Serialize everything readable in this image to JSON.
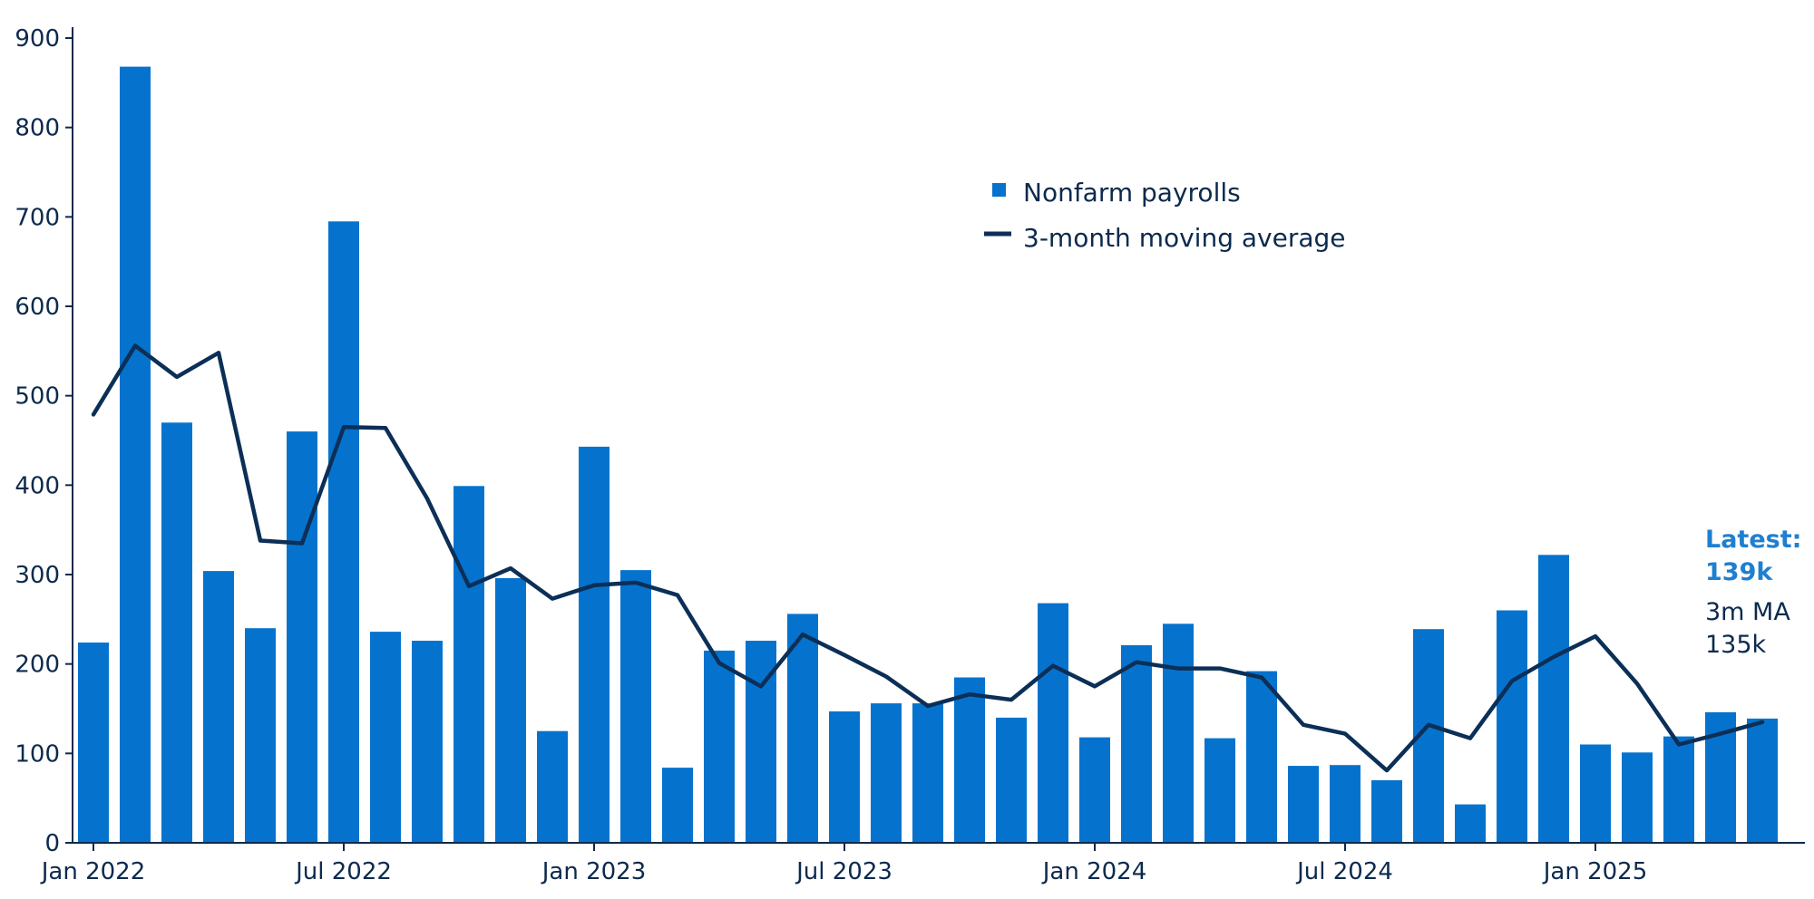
{
  "colors": {
    "bar": "#0573CE",
    "line": "#0C2F57",
    "axis": "#0C2A4D",
    "latest": "#1F7FD0"
  },
  "legend": {
    "bars_label": "Nonfarm payrolls",
    "line_label": "3-month moving average"
  },
  "annotation": {
    "latest_label": "Latest:",
    "latest_value": "139k",
    "ma_label": "3m MA",
    "ma_value": "135k"
  },
  "chart_data": {
    "type": "bar",
    "title": "",
    "xlabel": "",
    "ylabel": "",
    "ylim": [
      0,
      900
    ],
    "yticks": [
      0,
      100,
      200,
      300,
      400,
      500,
      600,
      700,
      800,
      900
    ],
    "grid": false,
    "legend_position": "top-center",
    "categories": [
      "2022-01",
      "2022-02",
      "2022-03",
      "2022-04",
      "2022-05",
      "2022-06",
      "2022-07",
      "2022-08",
      "2022-09",
      "2022-10",
      "2022-11",
      "2022-12",
      "2023-01",
      "2023-02",
      "2023-03",
      "2023-04",
      "2023-05",
      "2023-06",
      "2023-07",
      "2023-08",
      "2023-09",
      "2023-10",
      "2023-11",
      "2023-12",
      "2024-01",
      "2024-02",
      "2024-03",
      "2024-04",
      "2024-05",
      "2024-06",
      "2024-07",
      "2024-08",
      "2024-09",
      "2024-10",
      "2024-11",
      "2024-12",
      "2025-01",
      "2025-02",
      "2025-03",
      "2025-04",
      "2025-05"
    ],
    "xtick_labels": [
      {
        "index": 0,
        "label": "Jan 2022"
      },
      {
        "index": 6,
        "label": "Jul 2022"
      },
      {
        "index": 12,
        "label": "Jan 2023"
      },
      {
        "index": 18,
        "label": "Jul 2023"
      },
      {
        "index": 24,
        "label": "Jan 2024"
      },
      {
        "index": 30,
        "label": "Jul 2024"
      },
      {
        "index": 36,
        "label": "Jan 2025"
      }
    ],
    "series": [
      {
        "name": "Nonfarm payrolls",
        "type": "bar",
        "values": [
          224,
          868,
          470,
          304,
          240,
          460,
          695,
          236,
          226,
          399,
          296,
          125,
          443,
          305,
          84,
          215,
          226,
          256,
          147,
          156,
          156,
          185,
          140,
          268,
          118,
          221,
          245,
          117,
          192,
          86,
          87,
          70,
          239,
          43,
          260,
          322,
          110,
          101,
          119,
          146,
          139
        ]
      },
      {
        "name": "3-month moving average",
        "type": "line",
        "values": [
          479,
          556,
          521,
          548,
          338,
          335,
          465,
          464,
          385,
          287,
          307,
          273,
          288,
          291,
          277,
          201,
          175,
          233,
          210,
          186,
          153,
          166,
          160,
          198,
          175,
          202,
          195,
          195,
          185,
          132,
          122,
          81,
          132,
          117,
          181,
          208,
          231,
          178,
          110,
          122,
          135
        ]
      }
    ]
  }
}
